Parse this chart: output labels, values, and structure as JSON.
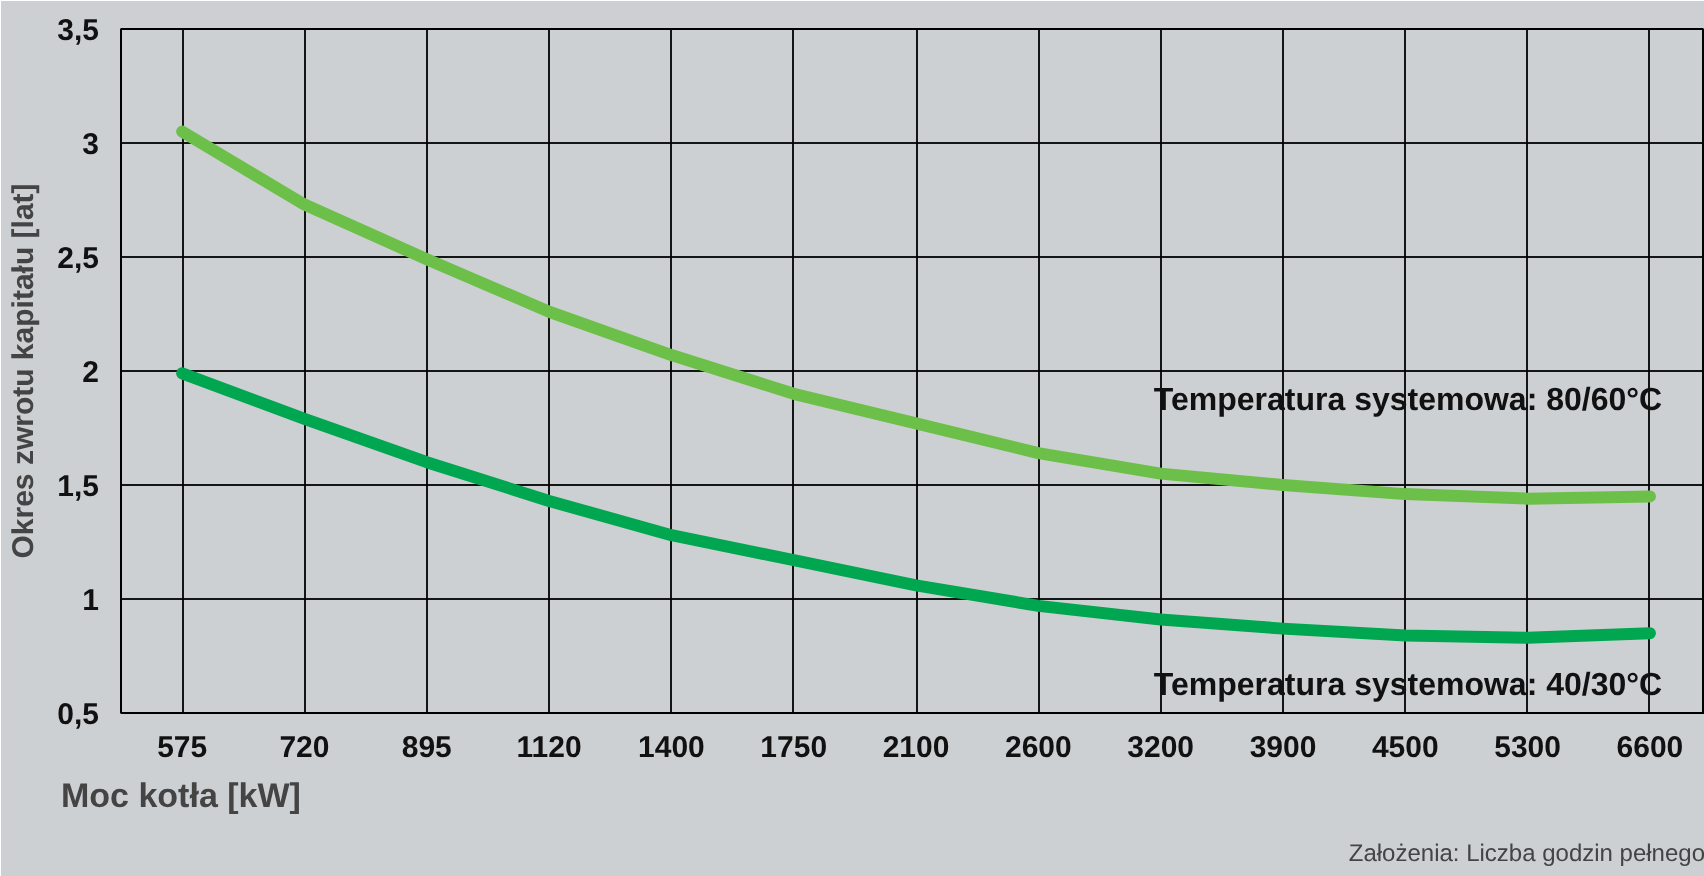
{
  "chart_data": {
    "type": "line",
    "xlabel": "Moc kotła [kW]",
    "ylabel": "Okres zwrotu kapitału [lat]",
    "categories": [
      "575",
      "720",
      "895",
      "1120",
      "1400",
      "1750",
      "2100",
      "2600",
      "3200",
      "3900",
      "4500",
      "5300",
      "6600"
    ],
    "series": [
      {
        "name": "Temperatura systemowa: 80/60°C",
        "color": "#6cc04a",
        "values": [
          3.05,
          2.73,
          2.49,
          2.26,
          2.07,
          1.9,
          1.77,
          1.64,
          1.55,
          1.5,
          1.46,
          1.44,
          1.45
        ]
      },
      {
        "name": "Temperatura systemowa: 40/30°C",
        "color": "#00a650",
        "values": [
          1.99,
          1.79,
          1.6,
          1.43,
          1.28,
          1.17,
          1.06,
          0.97,
          0.91,
          0.87,
          0.84,
          0.83,
          0.85
        ]
      }
    ],
    "ylim": [
      0.5,
      3.5
    ],
    "yticks": [
      {
        "value": 0.5,
        "label": "0,5"
      },
      {
        "value": 1,
        "label": "1"
      },
      {
        "value": 1.5,
        "label": "1,5"
      },
      {
        "value": 2,
        "label": "2"
      },
      {
        "value": 2.5,
        "label": "2,5"
      },
      {
        "value": 3,
        "label": "3"
      },
      {
        "value": 3.5,
        "label": "3,5"
      }
    ],
    "grid": true,
    "legend": false,
    "line_style": "solid",
    "marker": "none",
    "annotations": [
      "Założenia: Liczba godzin pełnego"
    ]
  }
}
